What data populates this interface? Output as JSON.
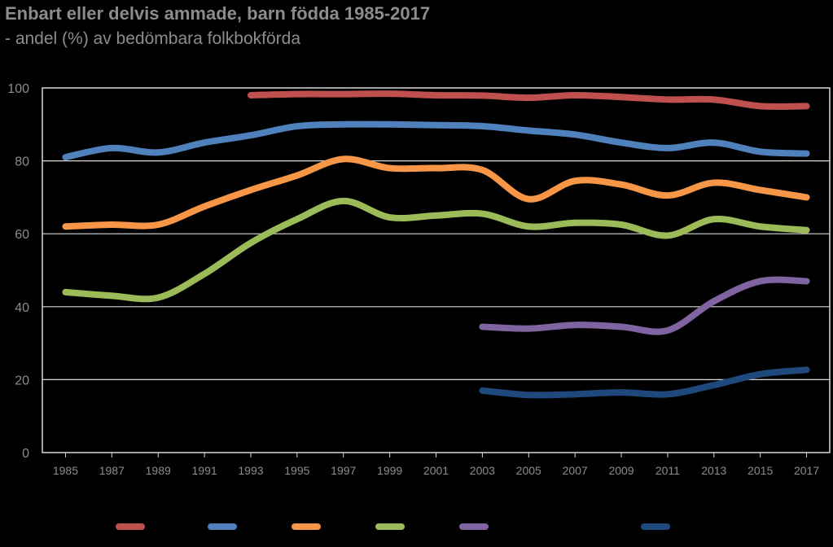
{
  "title": "Enbart eller delvis ammade, barn födda 1985-2017",
  "subtitle": "- andel (%) av bedömbara folkbokförda",
  "chart_data": {
    "type": "line",
    "title": "Enbart eller delvis ammade, barn födda 1985-2017",
    "subtitle": "- andel (%) av bedömbara folkbokförda",
    "xlabel": "",
    "ylabel": "",
    "ylim": [
      0,
      100
    ],
    "yticks": [
      "0",
      "20",
      "40",
      "60",
      "80",
      "100"
    ],
    "x": [
      1985,
      1987,
      1989,
      1991,
      1993,
      1995,
      1997,
      1999,
      2001,
      2003,
      2005,
      2007,
      2009,
      2011,
      2013,
      2015,
      2017
    ],
    "xtick_labels": [
      "1985",
      "1987",
      "1989",
      "1991",
      "1993",
      "1995",
      "1997",
      "1999",
      "2001",
      "2003",
      "2005",
      "2007",
      "2009",
      "2011",
      "2013",
      "2015",
      "2017"
    ],
    "grid": true,
    "legend": "bottom",
    "series": [
      {
        "color": "#c0504d",
        "x": [
          1993,
          1995,
          1997,
          1999,
          2001,
          2003,
          2005,
          2007,
          2009,
          2011,
          2013,
          2015,
          2017
        ],
        "values": [
          98,
          98.3,
          98.3,
          98.4,
          98,
          97.9,
          97.3,
          98,
          97.5,
          96.8,
          96.8,
          95,
          95
        ]
      },
      {
        "color": "#4f81bd",
        "x": [
          1985,
          1987,
          1989,
          1991,
          1993,
          1995,
          1997,
          1999,
          2001,
          2003,
          2005,
          2007,
          2009,
          2011,
          2013,
          2015,
          2017
        ],
        "values": [
          81,
          83.5,
          82.3,
          85,
          87,
          89.5,
          90,
          90,
          89.8,
          89.5,
          88.3,
          87.2,
          85,
          83.5,
          85,
          82.5,
          82
        ]
      },
      {
        "color": "#f79646",
        "x": [
          1985,
          1987,
          1989,
          1991,
          1993,
          1995,
          1997,
          1999,
          2001,
          2003,
          2005,
          2007,
          2009,
          2011,
          2013,
          2015,
          2017
        ],
        "values": [
          62,
          62.5,
          62.5,
          67.5,
          72,
          76,
          80.5,
          78,
          78,
          77.5,
          69.5,
          74.5,
          73.5,
          70.5,
          74,
          72,
          70
        ]
      },
      {
        "color": "#9bbb59",
        "x": [
          1985,
          1987,
          1989,
          1991,
          1993,
          1995,
          1997,
          1999,
          2001,
          2003,
          2005,
          2007,
          2009,
          2011,
          2013,
          2015,
          2017
        ],
        "values": [
          44,
          43,
          42.5,
          49,
          57.5,
          64,
          69,
          64.5,
          65,
          65.5,
          62,
          63,
          62.5,
          59.5,
          64,
          62,
          61
        ]
      },
      {
        "color": "#8064a2",
        "x": [
          2003,
          2005,
          2007,
          2009,
          2011,
          2013,
          2015,
          2017
        ],
        "values": [
          34.5,
          34,
          35,
          34.5,
          33.5,
          41.5,
          47,
          47
        ]
      },
      {
        "color": "#1f497d",
        "x": [
          2003,
          2005,
          2007,
          2009,
          2011,
          2013,
          2015,
          2017
        ],
        "values": [
          17,
          15.8,
          16,
          16.5,
          16,
          18.5,
          21.5,
          22.7
        ]
      }
    ]
  }
}
